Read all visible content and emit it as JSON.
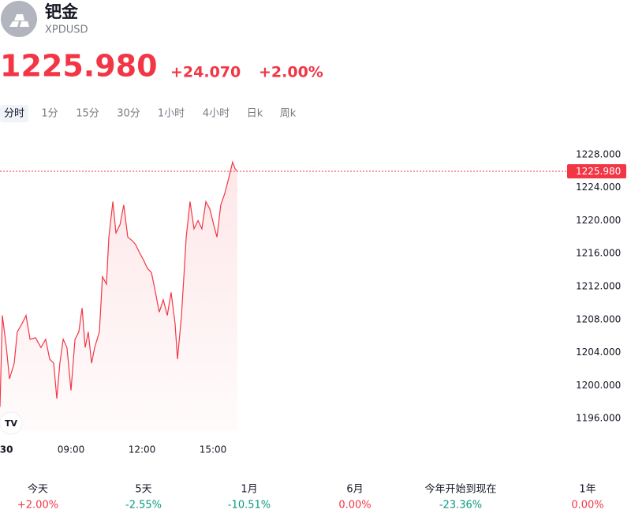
{
  "header": {
    "name": "钯金",
    "symbol": "XPDUSD",
    "price": "1225.980",
    "change": "+24.070",
    "change_percent": "+2.00%"
  },
  "tabs": [
    "分时",
    "1分",
    "15分",
    "30分",
    "1小时",
    "4小时",
    "日k",
    "周k"
  ],
  "chart_data": {
    "type": "line",
    "color": "#f23645",
    "x": [
      6.0,
      6.1,
      6.27,
      6.4,
      6.6,
      6.73,
      6.93,
      7.1,
      7.27,
      7.5,
      7.73,
      7.93,
      8.1,
      8.27,
      8.4,
      8.53,
      8.67,
      8.83,
      9.0,
      9.17,
      9.33,
      9.47,
      9.6,
      9.73,
      9.87,
      10.0,
      10.2,
      10.33,
      10.5,
      10.6,
      10.77,
      10.9,
      11.07,
      11.23,
      11.4,
      11.57,
      11.73,
      11.9,
      12.07,
      12.23,
      12.4,
      12.57,
      12.73,
      12.9,
      13.07,
      13.23,
      13.4,
      13.5,
      13.67,
      13.77,
      13.87,
      14.03,
      14.2,
      14.37,
      14.53,
      14.7,
      14.87,
      15.03,
      15.17,
      15.33,
      15.5,
      15.67,
      15.83,
      15.93,
      16.03
    ],
    "values": [
      1197.4,
      1208.5,
      1204.6,
      1200.8,
      1202.7,
      1206.5,
      1207.5,
      1208.5,
      1205.6,
      1205.8,
      1204.6,
      1205.6,
      1203.2,
      1202.7,
      1198.4,
      1202.7,
      1205.6,
      1204.6,
      1199.4,
      1205.6,
      1206.5,
      1209.4,
      1204.6,
      1206.5,
      1202.7,
      1204.6,
      1206.5,
      1213.2,
      1212.3,
      1218.0,
      1222.3,
      1218.5,
      1219.5,
      1221.9,
      1218.0,
      1217.6,
      1217.1,
      1216.1,
      1215.2,
      1214.2,
      1213.7,
      1211.3,
      1208.9,
      1210.4,
      1208.5,
      1211.3,
      1207.5,
      1203.2,
      1208.5,
      1213.2,
      1218.0,
      1222.3,
      1219.0,
      1220.0,
      1219.0,
      1222.3,
      1221.4,
      1219.5,
      1218.0,
      1221.9,
      1223.3,
      1225.2,
      1227.1,
      1226.3,
      1225.98
    ],
    "xlim": [
      6,
      30
    ],
    "xticks": [
      {
        "value": 6.27,
        "label": "30"
      },
      {
        "value": 9,
        "label": "09:00"
      },
      {
        "value": 12,
        "label": "12:00"
      },
      {
        "value": 15,
        "label": "15:00"
      }
    ],
    "ylim": [
      1194,
      1230
    ],
    "yticks": [
      {
        "value": 1196,
        "label": "1196.000"
      },
      {
        "value": 1200,
        "label": "1200.000"
      },
      {
        "value": 1204,
        "label": "1204.000"
      },
      {
        "value": 1208,
        "label": "1208.000"
      },
      {
        "value": 1212,
        "label": "1212.000"
      },
      {
        "value": 1216,
        "label": "1216.000"
      },
      {
        "value": 1220,
        "label": "1220.000"
      },
      {
        "value": 1224,
        "label": "1224.000"
      },
      {
        "value": 1228,
        "label": "1228.000"
      }
    ],
    "last_price": {
      "value": 1225.98,
      "label": "1225.980"
    }
  },
  "periods": [
    {
      "label": "今天",
      "change": "+2.00%",
      "color": "#f23645"
    },
    {
      "label": "5天",
      "change": "-2.55%",
      "color": "#089981"
    },
    {
      "label": "1月",
      "change": "-10.51%",
      "color": "#089981"
    },
    {
      "label": "6月",
      "change": "0.00%",
      "color": "#f23645"
    },
    {
      "label": "今年开始到现在",
      "change": "-23.36%",
      "color": "#089981"
    },
    {
      "label": "1年",
      "change": "0.00%",
      "color": "#f23645"
    }
  ]
}
